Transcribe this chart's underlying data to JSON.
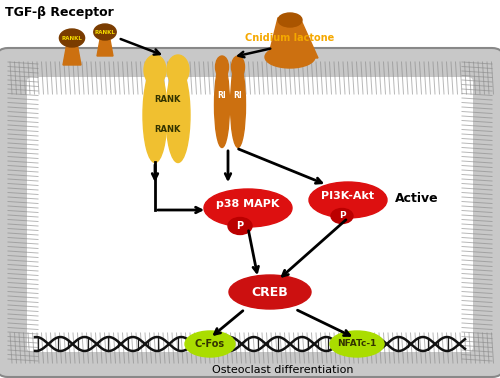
{
  "title": "TGF-β Receptor",
  "cnidium_label": "Cnidium lactone",
  "active_label": "Active",
  "osteoclast_label": "Osteoclast differentiation",
  "bg_color": "#ffffff",
  "mem_color": "#c8c8c8",
  "rank_color": "#f0c030",
  "ri_color": "#cc7010",
  "rankl_head_color": "#7a3c00",
  "rankl_body_color": "#cc7010",
  "rankl_label_color": "#f5dc00",
  "cnidium_color": "#cc7010",
  "cnidium_label_color": "#f5a800",
  "p38_color": "#dd1010",
  "pi3k_color": "#dd1010",
  "creb_color": "#cc1010",
  "p_color": "#cc0000",
  "cfos_color": "#aadd00",
  "nfatc1_color": "#aadd00",
  "dna_color": "#111111",
  "arrow_color": "#111111"
}
